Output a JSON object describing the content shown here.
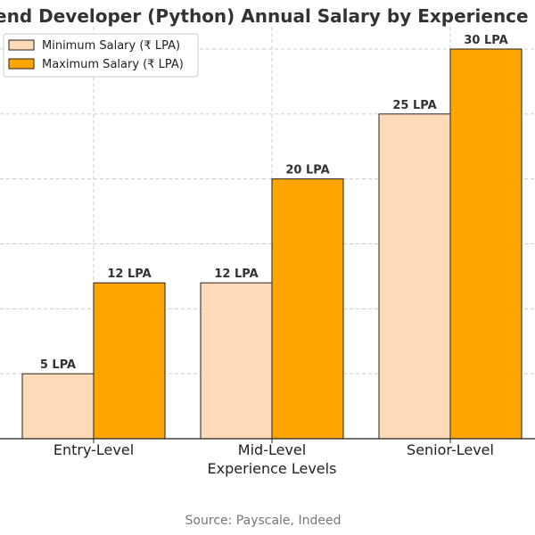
{
  "chart_data": {
    "type": "bar",
    "title": "Backend Developer (Python) Annual Salary by Experience Level",
    "xlabel": "Experience Levels",
    "ylabel": "",
    "categories": [
      "Entry-Level",
      "Mid-Level",
      "Senior-Level"
    ],
    "ylim": [
      0,
      30
    ],
    "grid": true,
    "legend_position": "top-left",
    "series": [
      {
        "name": "Minimum Salary (₹ LPA)",
        "values": [
          5,
          12,
          25
        ],
        "labels": [
          "5 LPA",
          "12 LPA",
          "25 LPA"
        ],
        "color": "#FFDAB9"
      },
      {
        "name": "Maximum Salary (₹ LPA)",
        "values": [
          12,
          20,
          30
        ],
        "labels": [
          "12 LPA",
          "20 LPA",
          "30 LPA"
        ],
        "color": "#FFA500"
      }
    ],
    "source": "Source: Payscale, Indeed"
  }
}
